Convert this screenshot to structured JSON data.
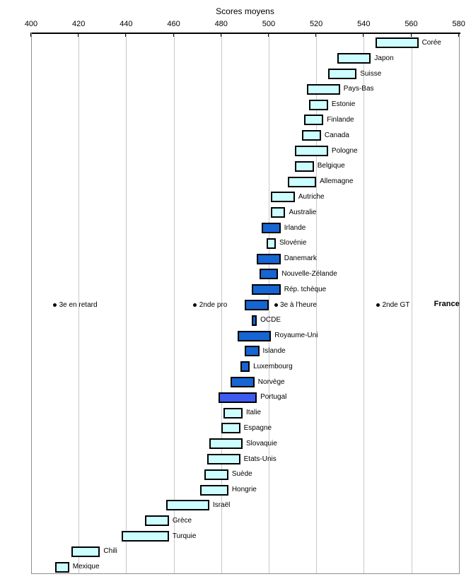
{
  "chart_data": {
    "type": "bar",
    "subtype": "horizontal-range-bars",
    "title": "Scores moyens",
    "axis": {
      "min": 400,
      "max": 580,
      "step": 20,
      "position": "top",
      "tick_labels": [
        "400",
        "420",
        "440",
        "460",
        "480",
        "500",
        "520",
        "540",
        "560",
        "580"
      ]
    },
    "grid": true,
    "legend_position": "none",
    "colors": {
      "cyan": "#ccfeff",
      "blue": "#1565d2",
      "royal": "#3d5bf0",
      "bar_border": "#000000",
      "gridline": "#c9c9c9",
      "frame": "#8f8f8f",
      "axis": "#000000"
    },
    "countries": [
      {
        "label": "Corée",
        "low": 545,
        "high": 563,
        "color": "cyan"
      },
      {
        "label": "Japon",
        "low": 529,
        "high": 543,
        "color": "cyan"
      },
      {
        "label": "Suisse",
        "low": 525,
        "high": 537,
        "color": "cyan"
      },
      {
        "label": "Pays-Bas",
        "low": 516,
        "high": 530,
        "color": "cyan"
      },
      {
        "label": "Estonie",
        "low": 517,
        "high": 525,
        "color": "cyan"
      },
      {
        "label": "Finlande",
        "low": 515,
        "high": 523,
        "color": "cyan"
      },
      {
        "label": "Canada",
        "low": 514,
        "high": 522,
        "color": "cyan"
      },
      {
        "label": "Pologne",
        "low": 511,
        "high": 525,
        "color": "cyan"
      },
      {
        "label": "Belgique",
        "low": 511,
        "high": 519,
        "color": "cyan"
      },
      {
        "label": "Allemagne",
        "low": 508,
        "high": 520,
        "color": "cyan"
      },
      {
        "label": "Autriche",
        "low": 501,
        "high": 511,
        "color": "cyan"
      },
      {
        "label": "Australie",
        "low": 501,
        "high": 507,
        "color": "cyan"
      },
      {
        "label": "Irlande",
        "low": 497,
        "high": 505,
        "color": "blue"
      },
      {
        "label": "Slovénie",
        "low": 499,
        "high": 503,
        "color": "cyan"
      },
      {
        "label": "Danemark",
        "low": 495,
        "high": 505,
        "color": "blue"
      },
      {
        "label": "Nouvelle-Zélande",
        "low": 496,
        "high": 504,
        "color": "blue"
      },
      {
        "label": "Rép. tchèque",
        "low": 493,
        "high": 505,
        "color": "blue"
      },
      {
        "label": "France",
        "low": 490,
        "high": 500,
        "color": "blue",
        "france_row": true
      },
      {
        "label": "OCDE",
        "low": 493,
        "high": 495,
        "color": "blue"
      },
      {
        "label": "Royaume-Uni",
        "low": 487,
        "high": 501,
        "color": "blue"
      },
      {
        "label": "Islande",
        "low": 490,
        "high": 496,
        "color": "blue"
      },
      {
        "label": "Luxembourg",
        "low": 488,
        "high": 492,
        "color": "blue"
      },
      {
        "label": "Norvège",
        "low": 484,
        "high": 494,
        "color": "blue"
      },
      {
        "label": "Portugal",
        "low": 479,
        "high": 495,
        "color": "royal"
      },
      {
        "label": "Italie",
        "low": 481,
        "high": 489,
        "color": "cyan"
      },
      {
        "label": "Espagne",
        "low": 480,
        "high": 488,
        "color": "cyan"
      },
      {
        "label": "Slovaquie",
        "low": 475,
        "high": 489,
        "color": "cyan"
      },
      {
        "label": "Etats-Unis",
        "low": 474,
        "high": 488,
        "color": "cyan"
      },
      {
        "label": "Suède",
        "low": 473,
        "high": 483,
        "color": "cyan"
      },
      {
        "label": "Hongrie",
        "low": 471,
        "high": 483,
        "color": "cyan"
      },
      {
        "label": "Israël",
        "low": 457,
        "high": 475,
        "color": "cyan"
      },
      {
        "label": "Grèce",
        "low": 448,
        "high": 458,
        "color": "cyan"
      },
      {
        "label": "Turquie",
        "low": 438,
        "high": 458,
        "color": "cyan"
      },
      {
        "label": "Chili",
        "low": 417,
        "high": 429,
        "color": "cyan"
      },
      {
        "label": "Mexique",
        "low": 410,
        "high": 416,
        "color": "cyan"
      }
    ],
    "france_markers": [
      {
        "label": "3e en retard",
        "value": 410
      },
      {
        "label": "2nde pro",
        "value": 469
      },
      {
        "label": "3e à l'heure",
        "value": 503
      },
      {
        "label": "2nde GT",
        "value": 546
      }
    ],
    "france_label": "France"
  }
}
